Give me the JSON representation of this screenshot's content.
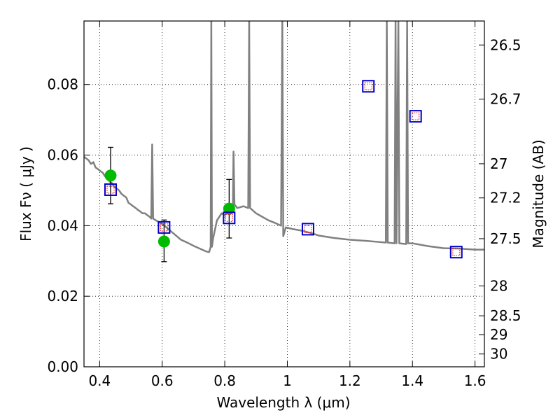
{
  "chart_data": {
    "type": "scatter",
    "xlabel": "Wavelength  λ (μm)",
    "ylabel": "Flux  Fν  ( μJy )",
    "y2label": "Magnitude (AB)",
    "xlim": [
      0.35,
      1.63
    ],
    "ylim": [
      0.0,
      0.098
    ],
    "grid": true,
    "legend": "none",
    "x_ticks": [
      {
        "value": 0.4,
        "label": "0.4"
      },
      {
        "value": 0.6,
        "label": "0.6"
      },
      {
        "value": 0.8,
        "label": "0.8"
      },
      {
        "value": 1.0,
        "label": "1"
      },
      {
        "value": 1.2,
        "label": "1.2"
      },
      {
        "value": 1.4,
        "label": "1.4"
      },
      {
        "value": 1.6,
        "label": "1.6"
      }
    ],
    "y_ticks": [
      {
        "value": 0.0,
        "label": "0.00"
      },
      {
        "value": 0.02,
        "label": "0.02"
      },
      {
        "value": 0.04,
        "label": "0.04"
      },
      {
        "value": 0.06,
        "label": "0.06"
      },
      {
        "value": 0.08,
        "label": "0.08"
      }
    ],
    "mag_ticks": [
      {
        "label": "26.5",
        "mag": 26.5
      },
      {
        "label": "26.7",
        "mag": 26.7
      },
      {
        "label": "27",
        "mag": 27.0
      },
      {
        "label": "27.2",
        "mag": 27.2
      },
      {
        "label": "27.5",
        "mag": 27.5
      },
      {
        "label": "28",
        "mag": 28.0
      },
      {
        "label": "28.5",
        "mag": 28.5
      },
      {
        "label": "29",
        "mag": 29.0
      },
      {
        "label": "30",
        "mag": 30.0
      }
    ],
    "colors": {
      "sed": "#808080",
      "observed": "#00bb00",
      "model_box": "#0000cc",
      "model_inner": "#dd0000",
      "errorbar": "#000000",
      "grid": "#000000"
    },
    "series": [
      {
        "kind": "line",
        "points": [
          [
            0.35,
            0.0595
          ],
          [
            0.358,
            0.059
          ],
          [
            0.365,
            0.0585
          ],
          [
            0.372,
            0.0575
          ],
          [
            0.38,
            0.058
          ],
          [
            0.387,
            0.0565
          ],
          [
            0.395,
            0.056
          ],
          [
            0.402,
            0.0555
          ],
          [
            0.41,
            0.055
          ],
          [
            0.417,
            0.054
          ],
          [
            0.425,
            0.0535
          ],
          [
            0.432,
            0.0525
          ],
          [
            0.44,
            0.052
          ],
          [
            0.447,
            0.051
          ],
          [
            0.455,
            0.0505
          ],
          [
            0.462,
            0.05
          ],
          [
            0.47,
            0.049
          ],
          [
            0.477,
            0.0485
          ],
          [
            0.485,
            0.048
          ],
          [
            0.492,
            0.0465
          ],
          [
            0.5,
            0.046
          ],
          [
            0.507,
            0.0455
          ],
          [
            0.515,
            0.045
          ],
          [
            0.522,
            0.0445
          ],
          [
            0.53,
            0.044
          ],
          [
            0.537,
            0.0435
          ],
          [
            0.545,
            0.0435
          ],
          [
            0.552,
            0.043
          ],
          [
            0.56,
            0.0425
          ],
          [
            0.565,
            0.042
          ],
          [
            0.568,
            0.063
          ],
          [
            0.571,
            0.042
          ],
          [
            0.58,
            0.0415
          ],
          [
            0.59,
            0.041
          ],
          [
            0.6,
            0.0405
          ],
          [
            0.62,
            0.039
          ],
          [
            0.64,
            0.0375
          ],
          [
            0.66,
            0.036
          ],
          [
            0.68,
            0.0352
          ],
          [
            0.7,
            0.0343
          ],
          [
            0.72,
            0.0335
          ],
          [
            0.74,
            0.0327
          ],
          [
            0.75,
            0.0325
          ],
          [
            0.755,
            0.034
          ],
          [
            0.757,
            0.098
          ],
          [
            0.759,
            0.034
          ],
          [
            0.763,
            0.0365
          ],
          [
            0.775,
            0.0415
          ],
          [
            0.79,
            0.0435
          ],
          [
            0.8,
            0.043
          ],
          [
            0.81,
            0.044
          ],
          [
            0.82,
            0.045
          ],
          [
            0.826,
            0.0455
          ],
          [
            0.828,
            0.061
          ],
          [
            0.831,
            0.046
          ],
          [
            0.84,
            0.045
          ],
          [
            0.86,
            0.0455
          ],
          [
            0.875,
            0.045
          ],
          [
            0.878,
            0.098
          ],
          [
            0.881,
            0.045
          ],
          [
            0.9,
            0.0435
          ],
          [
            0.92,
            0.0425
          ],
          [
            0.94,
            0.0415
          ],
          [
            0.96,
            0.0408
          ],
          [
            0.98,
            0.04
          ],
          [
            0.984,
            0.098
          ],
          [
            0.987,
            0.037
          ],
          [
            0.995,
            0.0395
          ],
          [
            1.02,
            0.039
          ],
          [
            1.05,
            0.0385
          ],
          [
            1.08,
            0.0378
          ],
          [
            1.1,
            0.0372
          ],
          [
            1.15,
            0.0365
          ],
          [
            1.2,
            0.036
          ],
          [
            1.25,
            0.0357
          ],
          [
            1.29,
            0.0354
          ],
          [
            1.315,
            0.0352
          ],
          [
            1.318,
            0.098
          ],
          [
            1.321,
            0.0352
          ],
          [
            1.343,
            0.035
          ],
          [
            1.346,
            0.098
          ],
          [
            1.349,
            0.035
          ],
          [
            1.355,
            0.098
          ],
          [
            1.358,
            0.035
          ],
          [
            1.38,
            0.0348
          ],
          [
            1.383,
            0.098
          ],
          [
            1.386,
            0.035
          ],
          [
            1.4,
            0.035
          ],
          [
            1.45,
            0.0342
          ],
          [
            1.5,
            0.0336
          ],
          [
            1.55,
            0.0335
          ],
          [
            1.6,
            0.0332
          ],
          [
            1.63,
            0.0332
          ]
        ]
      },
      {
        "kind": "observed",
        "points": [
          {
            "x": 0.435,
            "y": 0.0542,
            "ylow": 0.0462,
            "yhigh": 0.0622
          },
          {
            "x": 0.606,
            "y": 0.0355,
            "ylow": 0.0298,
            "yhigh": 0.0416
          },
          {
            "x": 0.814,
            "y": 0.0448,
            "ylow": 0.0365,
            "yhigh": 0.0531
          }
        ]
      },
      {
        "kind": "model",
        "points": [
          {
            "x": 0.435,
            "y": 0.0502
          },
          {
            "x": 0.606,
            "y": 0.0395
          },
          {
            "x": 0.814,
            "y": 0.0422
          },
          {
            "x": 1.066,
            "y": 0.039
          },
          {
            "x": 1.259,
            "y": 0.0795
          },
          {
            "x": 1.41,
            "y": 0.071
          },
          {
            "x": 1.54,
            "y": 0.0325
          }
        ]
      }
    ]
  }
}
